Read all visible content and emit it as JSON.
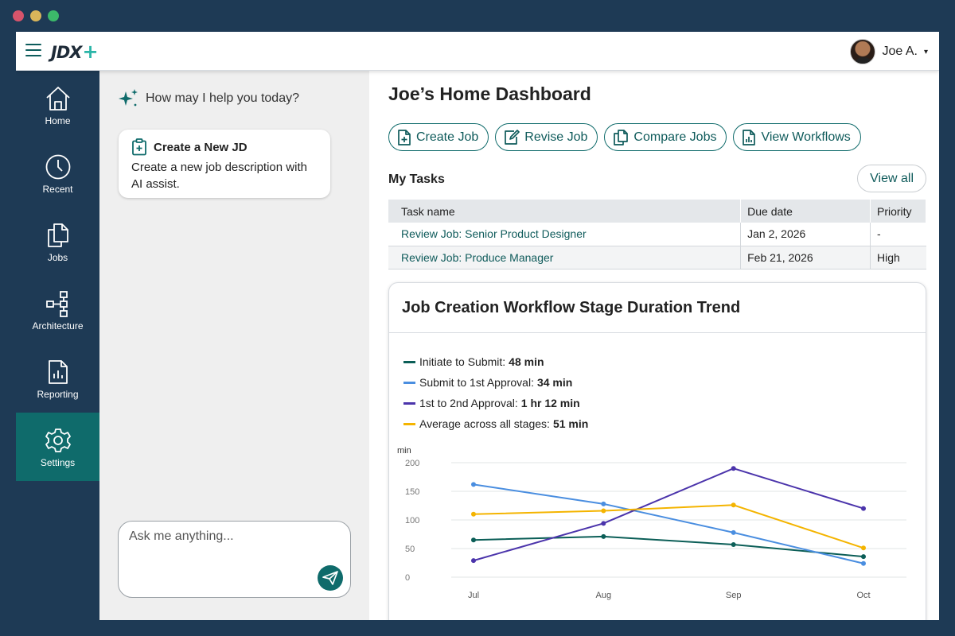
{
  "window": {
    "controls": [
      "close",
      "minimize",
      "maximize"
    ]
  },
  "header": {
    "logo_text": "JDX",
    "logo_plus": "+",
    "user_name": "Joe A.",
    "menu_icon": "hamburger-icon",
    "caret": "▾"
  },
  "sidebar": {
    "items": [
      {
        "label": "Home",
        "icon": "home-icon"
      },
      {
        "label": "Recent",
        "icon": "clock-icon"
      },
      {
        "label": "Jobs",
        "icon": "documents-icon"
      },
      {
        "label": "Architecture",
        "icon": "hierarchy-icon"
      },
      {
        "label": "Reporting",
        "icon": "report-icon"
      },
      {
        "label": "Settings",
        "icon": "gear-icon",
        "active": true
      }
    ]
  },
  "assistant": {
    "prompt": "How may I help you today?",
    "card": {
      "title": "Create a New JD",
      "description": "Create a new job description with AI assist."
    },
    "input_placeholder": "Ask me anything..."
  },
  "main": {
    "title": "Joe’s Home Dashboard",
    "actions": [
      {
        "label": "Create Job",
        "icon": "file-plus-icon"
      },
      {
        "label": "Revise Job",
        "icon": "file-edit-icon"
      },
      {
        "label": "Compare Jobs",
        "icon": "files-icon"
      },
      {
        "label": "View Workflows",
        "icon": "file-chart-icon"
      }
    ],
    "tasks": {
      "title": "My Tasks",
      "view_all": "View all",
      "columns": [
        "Task name",
        "Due date",
        "Priority"
      ],
      "rows": [
        {
          "name": "Review Job: Senior Product Designer",
          "due": "Jan 2, 2026",
          "priority": "-",
          "due_color": "#c62828"
        },
        {
          "name": "Review Job: Produce Manager",
          "due": "Feb 21, 2026",
          "priority": "High"
        }
      ]
    }
  },
  "chart_data": {
    "type": "line",
    "title": "Job Creation Workflow Stage Duration Trend",
    "ylabel": "min",
    "xlabel": "",
    "ylim": [
      0,
      200
    ],
    "yticks": [
      0,
      50,
      100,
      150,
      200
    ],
    "categories": [
      "Jul",
      "Aug",
      "Sep",
      "Oct"
    ],
    "grid": true,
    "legend_position": "top-left",
    "series": [
      {
        "name": "Initiate to Submit",
        "summary": "48 min",
        "color": "#0b5e57",
        "values": [
          65,
          71,
          57,
          36
        ]
      },
      {
        "name": "Submit to 1st Approval",
        "summary": "34 min",
        "color": "#4a8ee0",
        "values": [
          162,
          128,
          78,
          24
        ]
      },
      {
        "name": "1st to 2nd Approval",
        "summary": "1 hr 12 min",
        "color": "#4b34ab",
        "values": [
          29,
          94,
          190,
          120
        ]
      },
      {
        "name": "Average across all stages",
        "summary": "51 min",
        "color": "#f4b400",
        "values": [
          110,
          116,
          126,
          51
        ]
      }
    ]
  }
}
